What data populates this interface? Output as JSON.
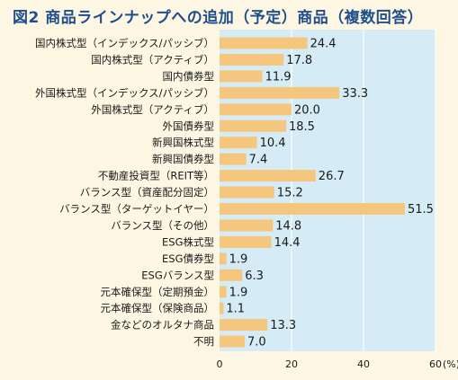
{
  "title": "図2 商品ラインナップへの追加（予定）商品（複数回答）",
  "colors": {
    "page_background": "#fdf6e2",
    "plot_background": "#d5ebf5",
    "bar": "#f5c77e",
    "grid": "#ffffff",
    "title": "#1f4e8c"
  },
  "chart_data": {
    "type": "bar",
    "orientation": "horizontal",
    "title": "図2 商品ラインナップへの追加（予定）商品（複数回答）",
    "categories": [
      "国内株式型（インデックス/パッシブ）",
      "国内株式型（アクティブ）",
      "国内債券型",
      "外国株式型（インデックス/パッシブ）",
      "外国株式型（アクティブ）",
      "外国債券型",
      "新興国株式型",
      "新興国債券型",
      "不動産投資型（REIT等）",
      "バランス型（資産配分固定）",
      "バランス型（ターゲットイヤー）",
      "バランス型（その他）",
      "ESG株式型",
      "ESG債券型",
      "ESGバランス型",
      "元本確保型（定期預金）",
      "元本確保型（保険商品）",
      "金などのオルタナ商品",
      "不明"
    ],
    "values": [
      24.4,
      17.8,
      11.9,
      33.3,
      20.0,
      18.5,
      10.4,
      7.4,
      26.7,
      15.2,
      51.5,
      14.8,
      14.4,
      1.9,
      6.3,
      1.9,
      1.1,
      13.3,
      7.0
    ],
    "value_labels": [
      "24.4",
      "17.8",
      "11.9",
      "33.3",
      "20.0",
      "18.5",
      "10.4",
      "7.4",
      "26.7",
      "15.2",
      "51.5",
      "14.8",
      "14.4",
      "1.9",
      "6.3",
      "1.9",
      "1.1",
      "13.3",
      "7.0"
    ],
    "xlim": [
      0,
      60
    ],
    "xticks": [
      "0",
      "20",
      "40",
      "60"
    ],
    "xunit": "(%)",
    "grid": true
  }
}
